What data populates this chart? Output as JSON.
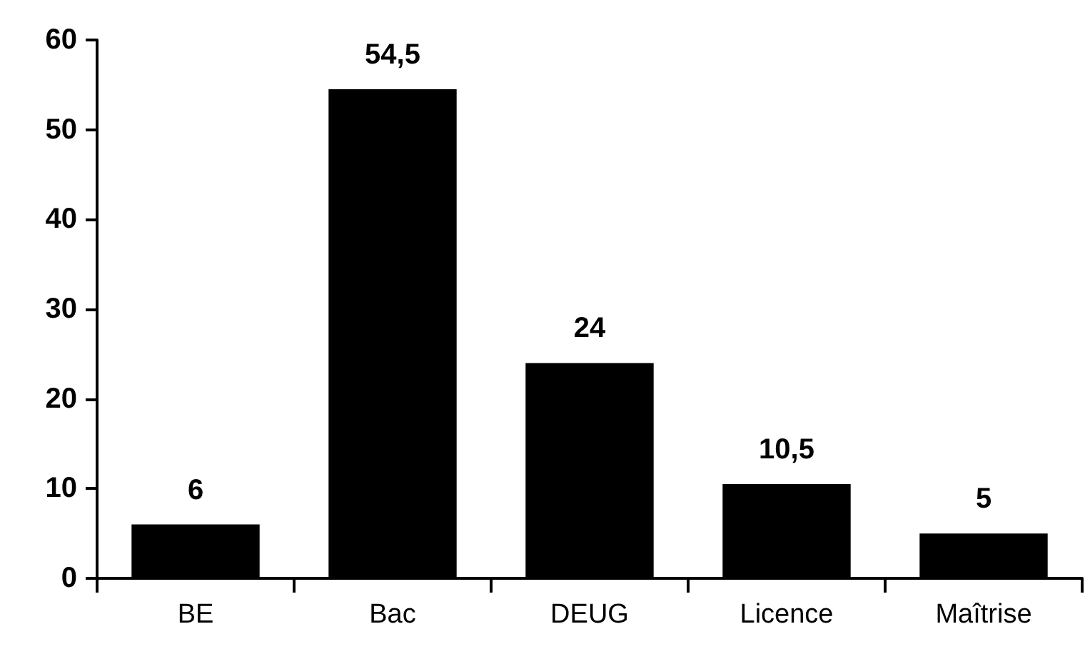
{
  "chart_data": {
    "type": "bar",
    "categories": [
      "BE",
      "Bac",
      "DEUG",
      "Licence",
      "Maîtrise"
    ],
    "values": [
      6,
      54.5,
      24,
      10.5,
      5
    ],
    "color": "#000000",
    "value_labels": [
      "6",
      "54,5",
      "24",
      "10,5",
      "5"
    ],
    "ylim": [
      0,
      60
    ],
    "yticks": [
      0,
      10,
      20,
      30,
      40,
      50,
      60
    ],
    "grid": false
  }
}
